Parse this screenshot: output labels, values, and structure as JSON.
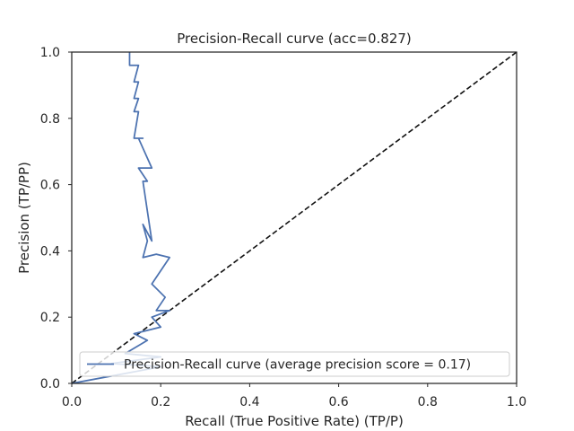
{
  "chart_data": {
    "type": "line",
    "title": "Precision-Recall curve (acc=0.827)",
    "xlabel": "Recall (True Positive Rate) (TP/P)",
    "ylabel": "Precision (TP/PP)",
    "xlim": [
      0.0,
      1.0
    ],
    "ylim": [
      0.0,
      1.0
    ],
    "xticks": [
      "0.0",
      "0.2",
      "0.4",
      "0.6",
      "0.8",
      "1.0"
    ],
    "yticks": [
      "0.0",
      "0.2",
      "0.4",
      "0.6",
      "0.8",
      "1.0"
    ],
    "grid": false,
    "legend_position": "lower-right",
    "series": [
      {
        "name": "Precision-Recall curve (average precision score = 0.17)",
        "color": "#4c72b0",
        "style": "solid",
        "x": [
          0.0,
          0.2,
          0.09,
          0.2,
          0.12,
          0.17,
          0.14,
          0.2,
          0.18,
          0.22,
          0.19,
          0.21,
          0.18,
          0.22,
          0.19,
          0.16,
          0.17,
          0.16,
          0.18,
          0.17,
          0.16,
          0.17,
          0.15,
          0.18,
          0.15,
          0.16,
          0.14,
          0.15,
          0.14,
          0.15,
          0.14,
          0.15,
          0.14,
          0.15,
          0.13,
          0.13
        ],
        "y": [
          0.0,
          0.05,
          0.06,
          0.08,
          0.09,
          0.13,
          0.15,
          0.17,
          0.2,
          0.22,
          0.22,
          0.26,
          0.3,
          0.38,
          0.39,
          0.38,
          0.43,
          0.48,
          0.43,
          0.52,
          0.61,
          0.61,
          0.65,
          0.65,
          0.74,
          0.74,
          0.74,
          0.82,
          0.82,
          0.86,
          0.86,
          0.91,
          0.91,
          0.96,
          0.96,
          1.0
        ]
      },
      {
        "name": "",
        "color": "#111111",
        "style": "dashed",
        "x": [
          0.0,
          1.0
        ],
        "y": [
          0.0,
          1.0
        ]
      }
    ]
  }
}
